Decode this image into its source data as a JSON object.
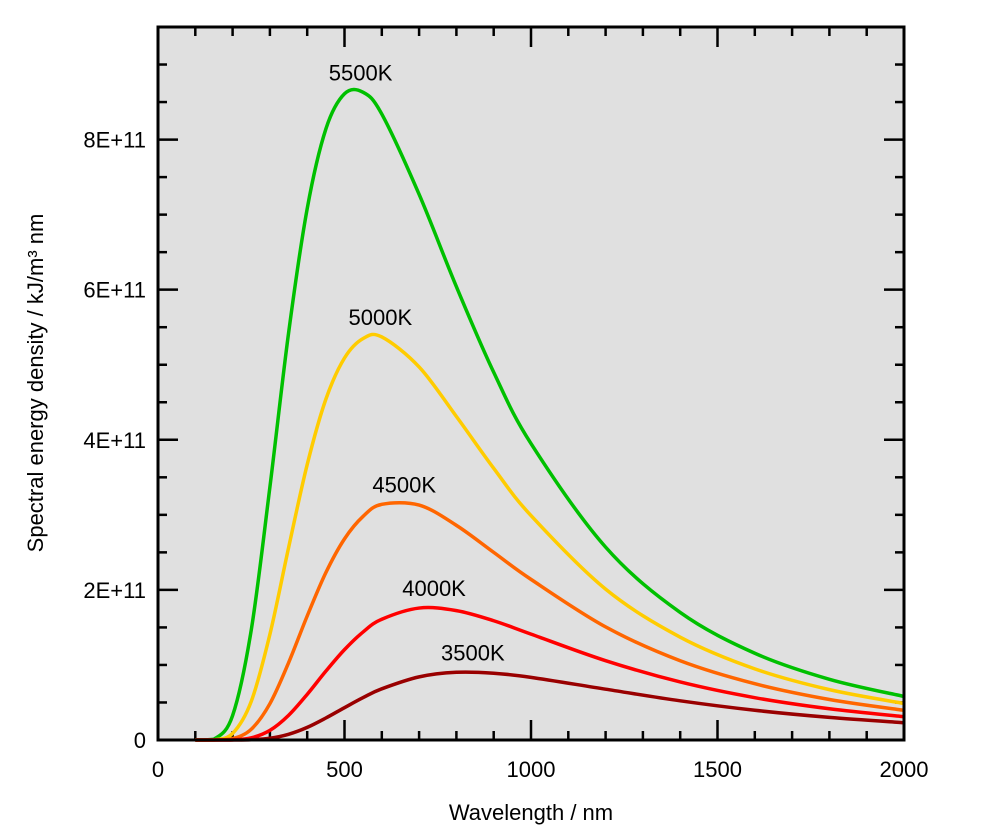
{
  "chart_data": {
    "type": "line",
    "title": "",
    "xlabel": "Wavelength / nm",
    "ylabel": "Spectral energy density / kJ/m³ nm",
    "xlim": [
      0,
      2000
    ],
    "ylim": [
      0,
      9.5
    ],
    "y_value_scale": "values in units of 1E+11",
    "x_ticks": [
      0,
      500,
      1000,
      1500,
      2000
    ],
    "x_tick_labels": [
      "0",
      "500",
      "1000",
      "1500",
      "2000"
    ],
    "y_ticks": [
      0,
      2,
      4,
      6,
      8
    ],
    "y_tick_labels": [
      "0",
      "2E+11",
      "4E+11",
      "6E+11",
      "8E+11"
    ],
    "grid": false,
    "x": [
      100,
      150,
      200,
      250,
      300,
      350,
      400,
      450,
      500,
      550,
      600,
      700,
      800,
      900,
      1000,
      1200,
      1400,
      1600,
      1800,
      2000
    ],
    "series": [
      {
        "name": "5500K",
        "color": "#00c000",
        "label_at": 527,
        "values": [
          0,
          0.01,
          0.326,
          1.466,
          3.37,
          5.42,
          7.08,
          8.14,
          8.61,
          8.63,
          8.34,
          7.27,
          6.04,
          4.9,
          3.95,
          2.57,
          1.7,
          1.156,
          0.809,
          0.58
        ]
      },
      {
        "name": "5000K",
        "color": "#ffcc00",
        "label_at": 580,
        "values": [
          0,
          0.001,
          0.088,
          0.515,
          1.408,
          2.56,
          3.67,
          4.54,
          5.09,
          5.35,
          5.37,
          4.97,
          4.31,
          3.62,
          2.99,
          2.01,
          1.37,
          0.948,
          0.671,
          0.487
        ]
      },
      {
        "name": "4500K",
        "color": "#ff6600",
        "label_at": 644,
        "values": [
          0,
          0,
          0.018,
          0.143,
          0.484,
          1.028,
          1.652,
          2.23,
          2.68,
          2.98,
          3.14,
          3.13,
          2.86,
          2.5,
          2.14,
          1.507,
          1.056,
          0.75,
          0.54,
          0.396
        ]
      },
      {
        "name": "4000K",
        "color": "#ff0000",
        "label_at": 724,
        "values": [
          0,
          0,
          0.0024,
          0.029,
          0.128,
          0.328,
          0.608,
          0.917,
          1.204,
          1.44,
          1.609,
          1.758,
          1.724,
          1.589,
          1.411,
          1.057,
          0.773,
          0.564,
          0.416,
          0.311
        ]
      },
      {
        "name": "3500K",
        "color": "#990000",
        "label_at": 828,
        "values": [
          0,
          0,
          0.0002,
          0.0037,
          0.023,
          0.076,
          0.168,
          0.293,
          0.431,
          0.565,
          0.682,
          0.841,
          0.902,
          0.89,
          0.835,
          0.677,
          0.522,
          0.396,
          0.301,
          0.23
        ]
      }
    ]
  }
}
